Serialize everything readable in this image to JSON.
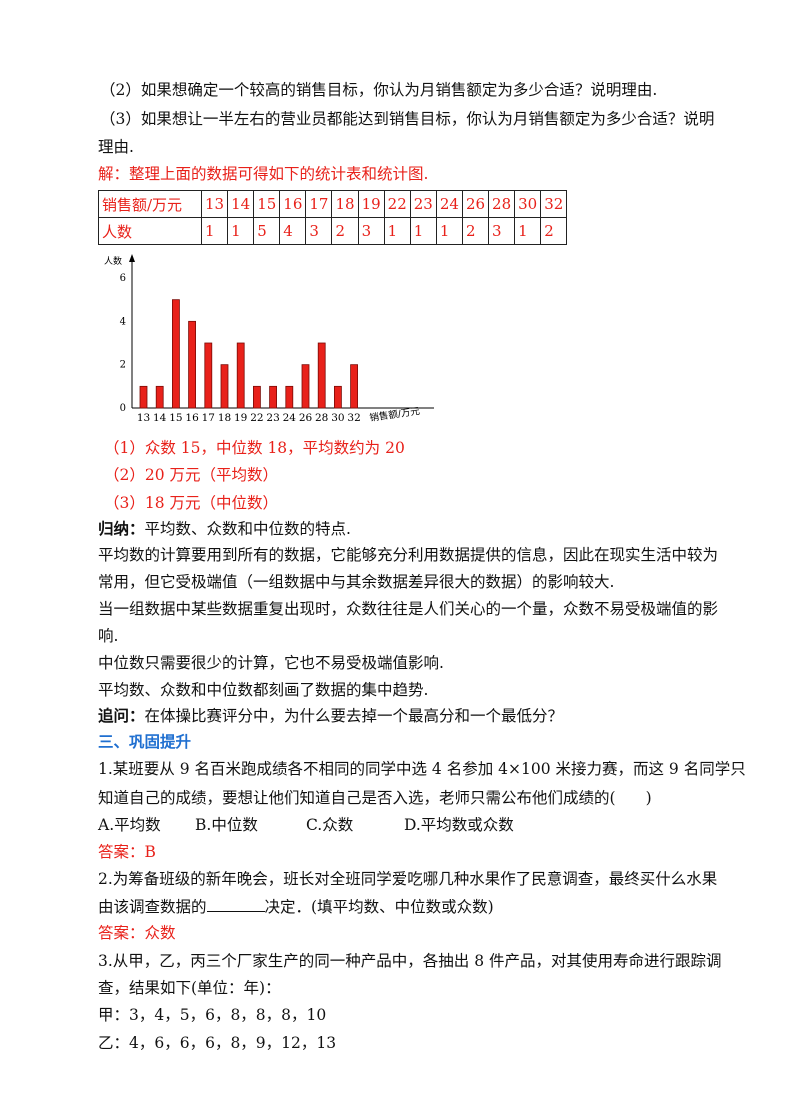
{
  "lines": {
    "q2": "（2）如果想确定一个较高的销售目标，你认为月销售额定为多少合适？说明理由.",
    "q3a": "（3）如果想让一半左右的营业员都能达到销售目标，你认为月销售额定为多少合适？说明",
    "q3b": "理由.",
    "solution": "解：整理上面的数据可得如下的统计表和统计图.",
    "ans1": "（1）众数 15，中位数 18，平均数约为 20",
    "ans2": "（2）20 万元（平均数）",
    "ans3": "（3）18 万元（中位数）",
    "summary_label": "归纳：",
    "summary_text": "平均数、众数和中位数的特点.",
    "p1a": "平均数的计算要用到所有的数据，它能够充分利用数据提供的信息，因此在现实生活中较为",
    "p1b": "常用，但它受极端值（一组数据中与其余数据差异很大的数据）的影响较大.",
    "p2a": "当一组数据中某些数据重复出现时，众数往往是人们关心的一个量，众数不易受极端值的影",
    "p2b": "响.",
    "p3": "中位数只需要很少的计算，它也不易受极端值影响.",
    "p4": "平均数、众数和中位数都刻画了数据的集中趋势.",
    "followup_label": "追问：",
    "followup_text": "在体操比赛评分中，为什么要去掉一个最高分和一个最低分？",
    "section3": "三、巩固提升",
    "ex1a": "1.某班要从 9 名百米跑成绩各不相同的同学中选 4 名参加 4×100 米接力赛，而这 9 名同学只",
    "ex1b_pre": "知道自己的成绩，要想让他们知道自己是否入选，老师只需公布他们成绩的(",
    "ex1b_post": ")",
    "ex1_optA": "A.平均数",
    "ex1_optB": "B.中位数",
    "ex1_optC": "C.众数",
    "ex1_optD": "D.平均数或众数",
    "ex1_answer": "答案：B",
    "ex2a": "2.为筹备班级的新年晚会，班长对全班同学爱吃哪几种水果作了民意调查，最终买什么水果",
    "ex2b_pre": "由该调查数据的",
    "ex2b_post": "决定．(填平均数、中位数或众数)",
    "ex2_answer": "答案：众数",
    "ex3a": "3.从甲，乙，丙三个厂家生产的同一种产品中，各抽出 8 件产品，对其使用寿命进行跟踪调",
    "ex3b": "查，结果如下(单位：年)：",
    "ex3_jia": "甲：3，4，5，6，8，8，8，10",
    "ex3_yi": "乙：4，6，6，6，8，9，12，13"
  },
  "table": {
    "row1_label": "销售额/万元",
    "row1_values": [
      "13",
      "14",
      "15",
      "16",
      "17",
      "18",
      "19",
      "22",
      "23",
      "24",
      "26",
      "28",
      "30",
      "32"
    ],
    "row2_label": "人数",
    "row2_values": [
      "1",
      "1",
      "5",
      "4",
      "3",
      "2",
      "3",
      "1",
      "1",
      "1",
      "2",
      "3",
      "1",
      "2"
    ]
  },
  "chart_data": {
    "type": "bar",
    "categories": [
      "13",
      "14",
      "15",
      "16",
      "17",
      "18",
      "19",
      "22",
      "23",
      "24",
      "26",
      "28",
      "30",
      "32"
    ],
    "values": [
      1,
      1,
      5,
      4,
      3,
      2,
      3,
      1,
      1,
      1,
      2,
      3,
      1,
      2
    ],
    "ylabel": "人数",
    "xlabel": "销售额/万元",
    "ylim": [
      0,
      6
    ],
    "yticks": [
      "0",
      "2",
      "4",
      "6"
    ],
    "bar_color": "#e8211a"
  }
}
